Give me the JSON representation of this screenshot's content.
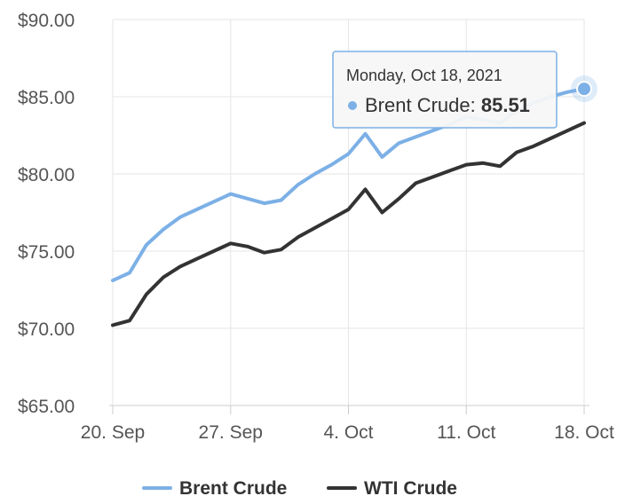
{
  "chart_data": {
    "type": "line",
    "ylim": [
      65,
      90
    ],
    "y_ticks": [
      65,
      70,
      75,
      80,
      85,
      90
    ],
    "y_tick_labels": [
      "$65.00",
      "$70.00",
      "$75.00",
      "$80.00",
      "$85.00",
      "$90.00"
    ],
    "x_ticks": [
      "2021-09-20",
      "2021-09-27",
      "2021-10-04",
      "2021-10-11",
      "2021-10-18"
    ],
    "x_tick_labels": [
      "20. Sep",
      "27. Sep",
      "4. Oct",
      "11. Oct",
      "18. Oct"
    ],
    "grid": true,
    "legend_position": "bottom-center",
    "series": [
      {
        "name": "Brent Crude",
        "color": "#7cb0e6",
        "points": [
          [
            "2021-09-20",
            73.1
          ],
          [
            "2021-09-21",
            73.6
          ],
          [
            "2021-09-22",
            75.4
          ],
          [
            "2021-09-23",
            76.4
          ],
          [
            "2021-09-24",
            77.2
          ],
          [
            "2021-09-25",
            77.7
          ],
          [
            "2021-09-26",
            78.2
          ],
          [
            "2021-09-27",
            78.7
          ],
          [
            "2021-09-28",
            78.4
          ],
          [
            "2021-09-29",
            78.1
          ],
          [
            "2021-09-30",
            78.3
          ],
          [
            "2021-10-01",
            79.3
          ],
          [
            "2021-10-02",
            80.0
          ],
          [
            "2021-10-03",
            80.6
          ],
          [
            "2021-10-04",
            81.3
          ],
          [
            "2021-10-05",
            82.6
          ],
          [
            "2021-10-06",
            81.1
          ],
          [
            "2021-10-07",
            82.0
          ],
          [
            "2021-10-08",
            82.4
          ],
          [
            "2021-10-09",
            82.8
          ],
          [
            "2021-10-10",
            83.2
          ],
          [
            "2021-10-11",
            83.7
          ],
          [
            "2021-10-12",
            83.5
          ],
          [
            "2021-10-13",
            83.3
          ],
          [
            "2021-10-14",
            84.1
          ],
          [
            "2021-10-15",
            84.6
          ],
          [
            "2021-10-16",
            85.0
          ],
          [
            "2021-10-17",
            85.3
          ],
          [
            "2021-10-18",
            85.51
          ]
        ]
      },
      {
        "name": "WTI Crude",
        "color": "#333333",
        "points": [
          [
            "2021-09-20",
            70.2
          ],
          [
            "2021-09-21",
            70.5
          ],
          [
            "2021-09-22",
            72.2
          ],
          [
            "2021-09-23",
            73.3
          ],
          [
            "2021-09-24",
            74.0
          ],
          [
            "2021-09-25",
            74.5
          ],
          [
            "2021-09-26",
            75.0
          ],
          [
            "2021-09-27",
            75.5
          ],
          [
            "2021-09-28",
            75.3
          ],
          [
            "2021-09-29",
            74.9
          ],
          [
            "2021-09-30",
            75.1
          ],
          [
            "2021-10-01",
            75.9
          ],
          [
            "2021-10-02",
            76.5
          ],
          [
            "2021-10-03",
            77.1
          ],
          [
            "2021-10-04",
            77.7
          ],
          [
            "2021-10-05",
            79.0
          ],
          [
            "2021-10-06",
            77.5
          ],
          [
            "2021-10-07",
            78.4
          ],
          [
            "2021-10-08",
            79.4
          ],
          [
            "2021-10-09",
            79.8
          ],
          [
            "2021-10-10",
            80.2
          ],
          [
            "2021-10-11",
            80.6
          ],
          [
            "2021-10-12",
            80.7
          ],
          [
            "2021-10-13",
            80.5
          ],
          [
            "2021-10-14",
            81.4
          ],
          [
            "2021-10-15",
            81.8
          ],
          [
            "2021-10-16",
            82.3
          ],
          [
            "2021-10-17",
            82.8
          ],
          [
            "2021-10-18",
            83.3
          ]
        ]
      }
    ],
    "tooltip": {
      "date": "Monday, Oct 18, 2021",
      "series": "Brent Crude",
      "value": "85.51",
      "point": [
        "2021-10-18",
        85.51
      ]
    }
  }
}
